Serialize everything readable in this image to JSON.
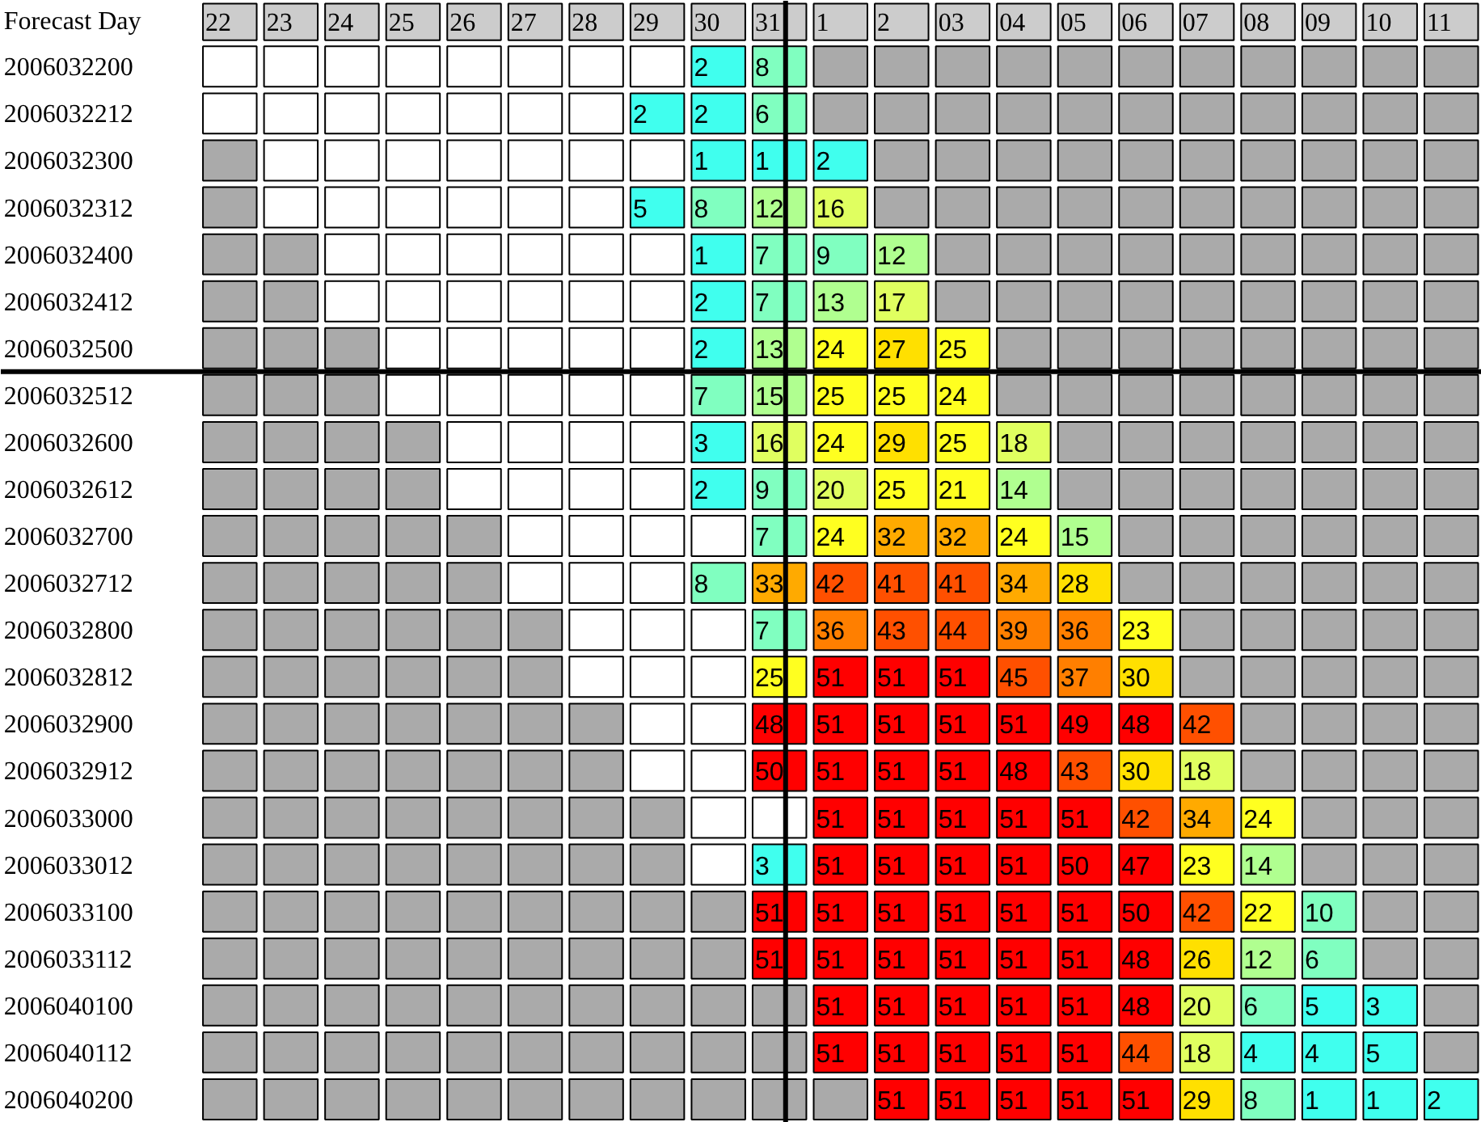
{
  "chart_data": {
    "type": "heatmap",
    "xlabel": "Forecast Day",
    "data_labels": true,
    "categories": [
      "22",
      "23",
      "24",
      "25",
      "26",
      "27",
      "28",
      "29",
      "30",
      "31",
      "1",
      "2",
      "03",
      "04",
      "05",
      "06",
      "07",
      "08",
      "09",
      "10",
      "11"
    ],
    "y_categories": [
      "2006032200",
      "2006032212",
      "2006032300",
      "2006032312",
      "2006032400",
      "2006032412",
      "2006032500",
      "2006032512",
      "2006032600",
      "2006032612",
      "2006032700",
      "2006032712",
      "2006032800",
      "2006032812",
      "2006032900",
      "2006032912",
      "2006033000",
      "2006033012",
      "2006033100",
      "2006033112",
      "2006040100",
      "2006040112",
      "2006040200"
    ],
    "cells": [
      [
        null,
        null,
        null,
        null,
        null,
        null,
        null,
        null,
        2,
        8,
        null,
        null,
        null,
        null,
        null,
        null,
        null,
        null,
        null,
        null,
        null
      ],
      [
        null,
        null,
        null,
        null,
        null,
        null,
        null,
        2,
        2,
        6,
        null,
        null,
        null,
        null,
        null,
        null,
        null,
        null,
        null,
        null,
        null
      ],
      [
        null,
        null,
        null,
        null,
        null,
        null,
        null,
        null,
        1,
        1,
        2,
        null,
        null,
        null,
        null,
        null,
        null,
        null,
        null,
        null,
        null
      ],
      [
        null,
        null,
        null,
        null,
        null,
        null,
        null,
        5,
        8,
        12,
        16,
        null,
        null,
        null,
        null,
        null,
        null,
        null,
        null,
        null,
        null
      ],
      [
        null,
        null,
        null,
        null,
        null,
        null,
        null,
        null,
        1,
        7,
        9,
        12,
        null,
        null,
        null,
        null,
        null,
        null,
        null,
        null,
        null
      ],
      [
        null,
        null,
        null,
        null,
        null,
        null,
        null,
        null,
        2,
        7,
        13,
        17,
        null,
        null,
        null,
        null,
        null,
        null,
        null,
        null,
        null
      ],
      [
        null,
        null,
        null,
        null,
        null,
        null,
        null,
        null,
        2,
        13,
        24,
        27,
        25,
        null,
        null,
        null,
        null,
        null,
        null,
        null,
        null
      ],
      [
        null,
        null,
        null,
        null,
        null,
        null,
        null,
        null,
        7,
        15,
        25,
        25,
        24,
        null,
        null,
        null,
        null,
        null,
        null,
        null,
        null
      ],
      [
        null,
        null,
        null,
        null,
        null,
        null,
        null,
        null,
        3,
        16,
        24,
        29,
        25,
        18,
        null,
        null,
        null,
        null,
        null,
        null,
        null
      ],
      [
        null,
        null,
        null,
        null,
        null,
        null,
        null,
        null,
        2,
        9,
        20,
        25,
        21,
        14,
        null,
        null,
        null,
        null,
        null,
        null,
        null
      ],
      [
        null,
        null,
        null,
        null,
        null,
        null,
        null,
        null,
        null,
        7,
        24,
        32,
        32,
        24,
        15,
        null,
        null,
        null,
        null,
        null,
        null
      ],
      [
        null,
        null,
        null,
        null,
        null,
        null,
        null,
        null,
        8,
        33,
        42,
        41,
        41,
        34,
        28,
        null,
        null,
        null,
        null,
        null,
        null
      ],
      [
        null,
        null,
        null,
        null,
        null,
        null,
        null,
        null,
        null,
        7,
        36,
        43,
        44,
        39,
        36,
        23,
        null,
        null,
        null,
        null,
        null
      ],
      [
        null,
        null,
        null,
        null,
        null,
        null,
        null,
        null,
        null,
        25,
        51,
        51,
        51,
        45,
        37,
        30,
        null,
        null,
        null,
        null,
        null
      ],
      [
        null,
        null,
        null,
        null,
        null,
        null,
        null,
        null,
        null,
        48,
        51,
        51,
        51,
        51,
        49,
        48,
        42,
        null,
        null,
        null,
        null
      ],
      [
        null,
        null,
        null,
        null,
        null,
        null,
        null,
        null,
        null,
        50,
        51,
        51,
        51,
        48,
        43,
        30,
        18,
        null,
        null,
        null,
        null
      ],
      [
        null,
        null,
        null,
        null,
        null,
        null,
        null,
        null,
        null,
        null,
        51,
        51,
        51,
        51,
        51,
        42,
        34,
        24,
        null,
        null,
        null
      ],
      [
        null,
        null,
        null,
        null,
        null,
        null,
        null,
        null,
        null,
        3,
        51,
        51,
        51,
        51,
        50,
        47,
        23,
        14,
        null,
        null,
        null
      ],
      [
        null,
        null,
        null,
        null,
        null,
        null,
        null,
        null,
        null,
        51,
        51,
        51,
        51,
        51,
        51,
        50,
        42,
        22,
        10,
        null,
        null
      ],
      [
        null,
        null,
        null,
        null,
        null,
        null,
        null,
        null,
        null,
        51,
        51,
        51,
        51,
        51,
        51,
        48,
        26,
        12,
        6,
        null,
        null
      ],
      [
        null,
        null,
        null,
        null,
        null,
        null,
        null,
        null,
        null,
        null,
        51,
        51,
        51,
        51,
        51,
        48,
        20,
        6,
        5,
        3,
        null
      ],
      [
        null,
        null,
        null,
        null,
        null,
        null,
        null,
        null,
        null,
        null,
        51,
        51,
        51,
        51,
        51,
        44,
        18,
        4,
        4,
        5,
        null
      ],
      [
        null,
        null,
        null,
        null,
        null,
        null,
        null,
        null,
        null,
        null,
        null,
        51,
        51,
        51,
        51,
        51,
        29,
        8,
        1,
        1,
        2
      ]
    ],
    "ref_lines": [
      {
        "axis": "x",
        "value": "31",
        "color": "#000000"
      },
      {
        "axis": "y",
        "value": "2006032500",
        "color": "#000000"
      }
    ]
  }
}
